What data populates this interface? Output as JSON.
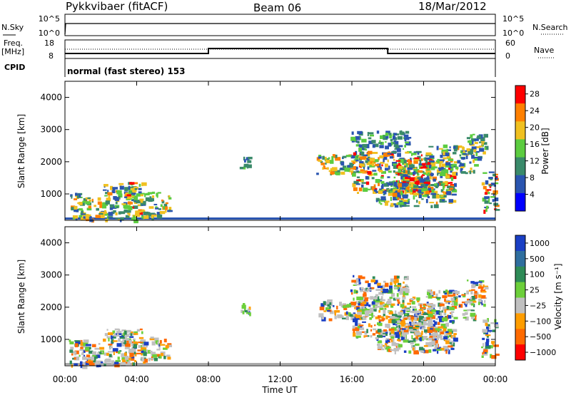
{
  "header": {
    "station": "Pykkvibaer (fitACF)",
    "beam": "Beam 06",
    "date": "18/Mar/2012"
  },
  "nsky_panel": {
    "left_label": "N.Sky",
    "left_ticks": [
      "10^5",
      "10^0"
    ],
    "right_ticks": [
      "10^5",
      "10^0"
    ],
    "right_label": "N.Search"
  },
  "freq_panel": {
    "left_label_line1": "Freq.",
    "left_label_line2": "[MHz]",
    "left_ticks": [
      "18",
      "8"
    ],
    "right_ticks": [
      "60",
      "0"
    ],
    "right_label": "Nave",
    "cpid_label": "CPID",
    "cpid_text": "normal (fast stereo) 153"
  },
  "chart_data": [
    {
      "type": "heatmap",
      "name": "power",
      "xlabel": "Time UT",
      "ylabel": "Slant Range [km]",
      "xlim": [
        0,
        24
      ],
      "ylim": [
        180,
        4500
      ],
      "yticks": [
        "1000",
        "2000",
        "3000",
        "4000"
      ],
      "colorbar_label": "Power [dB]",
      "colorbar_ticks": [
        "4",
        "8",
        "12",
        "16",
        "20",
        "24",
        "28"
      ],
      "colorbar_range": [
        0,
        30
      ],
      "colors": [
        "#0000ff",
        "#2a55b0",
        "#3a8a6a",
        "#5ccc40",
        "#f0c020",
        "#ff8000",
        "#ff0000"
      ]
    },
    {
      "type": "heatmap",
      "name": "velocity",
      "xlabel": "Time UT",
      "ylabel": "Slant Range [km]",
      "xlim": [
        0,
        24
      ],
      "ylim": [
        180,
        4500
      ],
      "yticks": [
        "1000",
        "2000",
        "3000",
        "4000"
      ],
      "xticks": [
        "00:00",
        "04:00",
        "08:00",
        "12:00",
        "16:00",
        "20:00",
        "00:00"
      ],
      "colorbar_label": "Velocity [m s⁻¹]",
      "colorbar_ticks": [
        "1000",
        "500",
        "100",
        "25",
        "−25",
        "−100",
        "−500",
        "−1000"
      ],
      "colors": [
        "#1a3fc4",
        "#2f6e9e",
        "#2e8b57",
        "#6ccf3a",
        "#c0c0c0",
        "#ff9d00",
        "#ff6a00",
        "#ff0000"
      ]
    }
  ]
}
